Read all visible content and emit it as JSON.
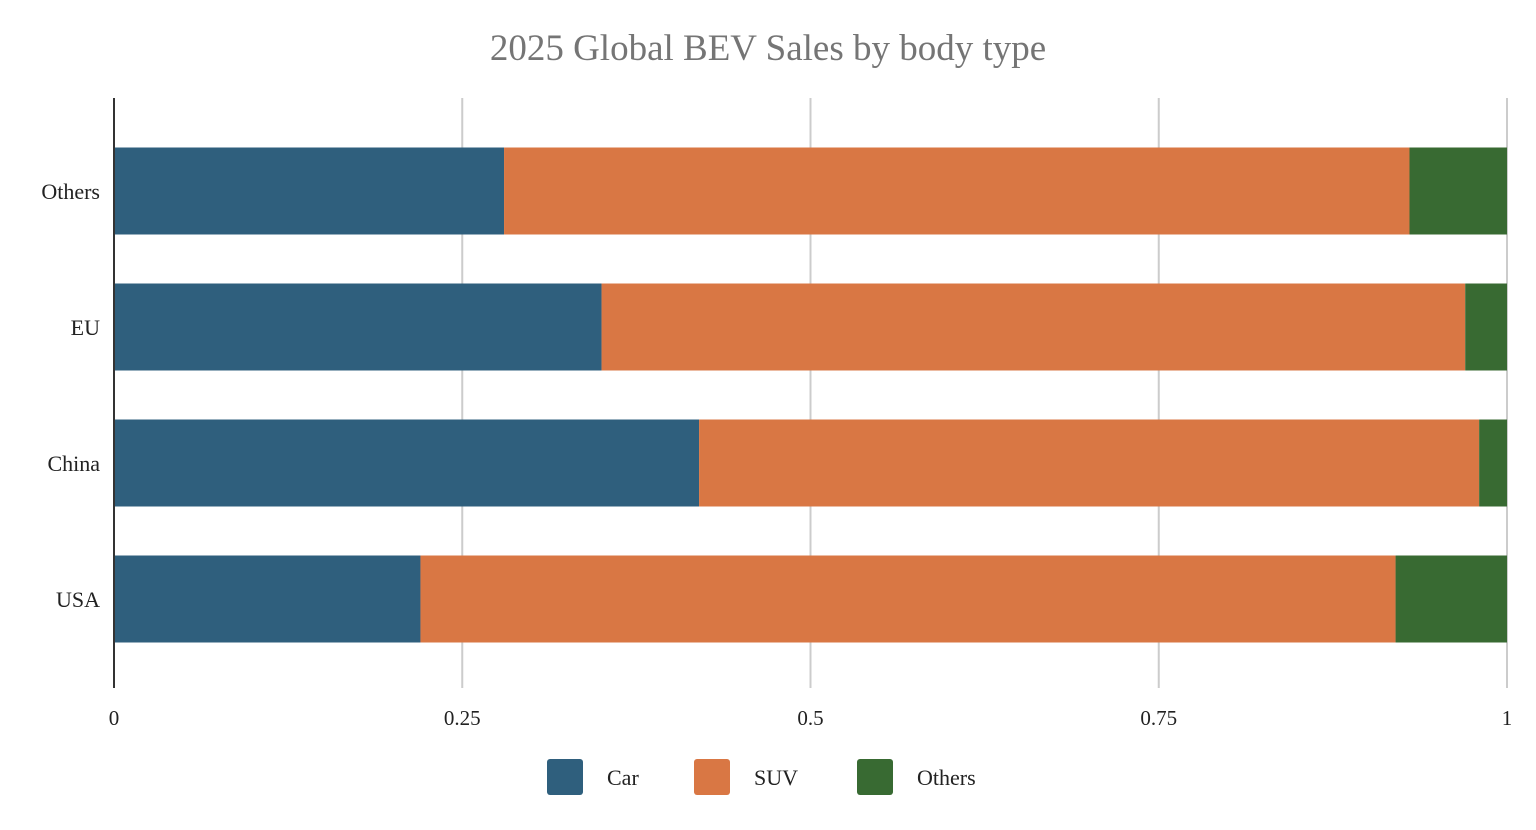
{
  "chart_data": {
    "type": "bar",
    "orientation": "horizontal",
    "stacked": true,
    "title": "2025 Global BEV Sales by body type",
    "xlabel": "",
    "ylabel": "",
    "xlim": [
      0,
      1
    ],
    "x_ticks": [
      "0",
      "0.25",
      "0.5",
      "0.75",
      "1"
    ],
    "x_tick_values": [
      0,
      0.25,
      0.5,
      0.75,
      1
    ],
    "grid": true,
    "legend_position": "bottom",
    "categories": [
      "Others",
      "EU",
      "China",
      "USA"
    ],
    "series": [
      {
        "name": "Car",
        "color": "#2f5f7d",
        "values": [
          0.28,
          0.35,
          0.42,
          0.22
        ]
      },
      {
        "name": "SUV",
        "color": "#d97744",
        "values": [
          0.65,
          0.62,
          0.56,
          0.7
        ]
      },
      {
        "name": "Others",
        "color": "#386a32",
        "values": [
          0.07,
          0.03,
          0.02,
          0.08
        ]
      }
    ]
  }
}
